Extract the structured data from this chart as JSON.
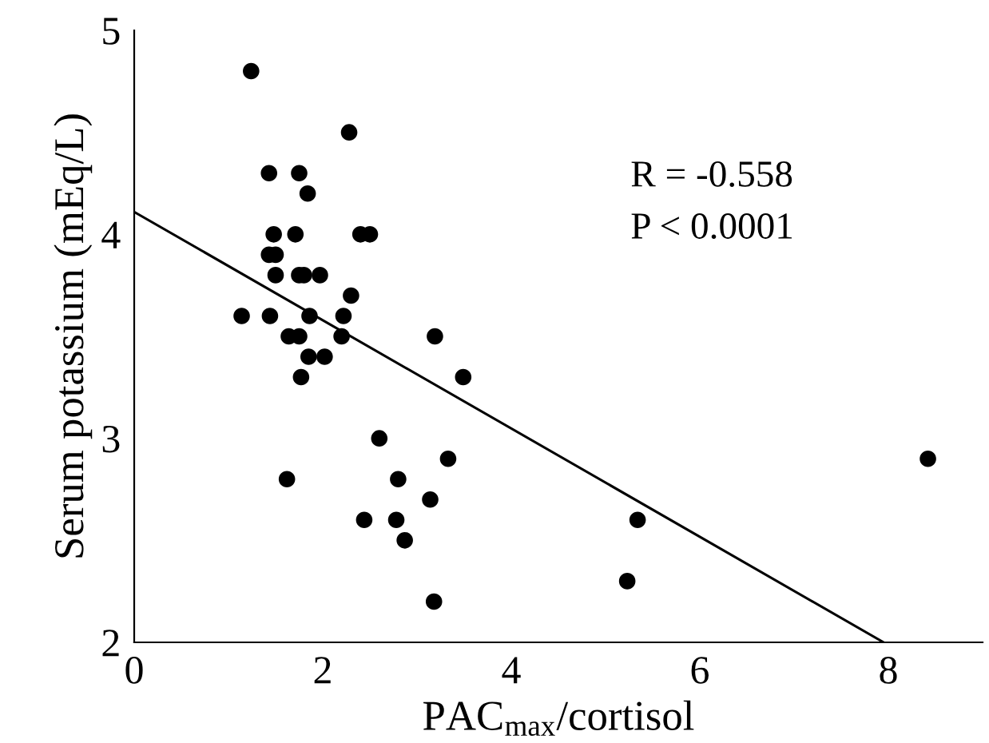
{
  "chart_data": {
    "type": "scatter",
    "xlabel": "PAC$_{max}$/cortisol",
    "ylabel": "Serum potassium (mEq/L)",
    "xlim": [
      0,
      9
    ],
    "xticks": [
      0,
      2,
      4,
      6,
      8
    ],
    "ylim": [
      2,
      5
    ],
    "yticks": [
      2,
      3,
      4,
      5
    ],
    "grid": false,
    "legend": false,
    "annotations": [
      "R = -0.558",
      "P < 0.0001"
    ],
    "series": [
      {
        "color": "#000000",
        "marker": "circle",
        "x": [
          1.24,
          2.28,
          1.43,
          1.75,
          1.84,
          1.48,
          1.71,
          2.4,
          2.5,
          1.43,
          1.5,
          1.5,
          1.75,
          1.8,
          1.97,
          2.3,
          1.14,
          1.44,
          1.86,
          2.22,
          1.64,
          1.75,
          2.2,
          3.19,
          1.85,
          2.02,
          1.77,
          3.49,
          2.6,
          3.33,
          1.62,
          2.8,
          3.14,
          2.44,
          2.78,
          2.87,
          3.18,
          5.34,
          5.23,
          8.42
        ],
        "values": [
          4.8,
          4.5,
          4.3,
          4.3,
          4.2,
          4.0,
          4.0,
          4.0,
          4.0,
          3.9,
          3.9,
          3.8,
          3.8,
          3.8,
          3.8,
          3.7,
          3.6,
          3.6,
          3.6,
          3.6,
          3.5,
          3.5,
          3.5,
          3.5,
          3.4,
          3.4,
          3.3,
          3.3,
          3.0,
          2.9,
          2.8,
          2.8,
          2.7,
          2.6,
          2.6,
          2.5,
          2.2,
          2.6,
          2.3,
          2.9
        ]
      },
      {
        "type": "line",
        "color": "#000000",
        "marker": "none",
        "line_style": "solid",
        "x": [
          0,
          7.95
        ],
        "values": [
          4.11,
          2
        ]
      }
    ]
  }
}
